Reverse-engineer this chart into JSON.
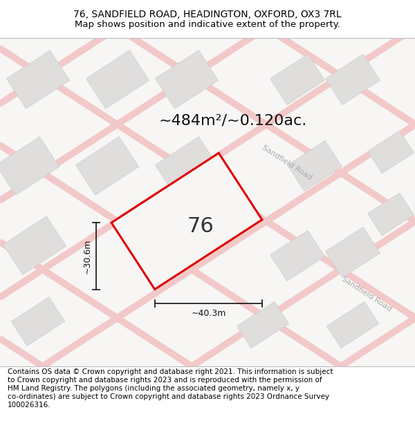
{
  "title_line1": "76, SANDFIELD ROAD, HEADINGTON, OXFORD, OX3 7RL",
  "title_line2": "Map shows position and indicative extent of the property.",
  "footer_lines": [
    "Contains OS data © Crown copyright and database right 2021. This information is subject",
    "to Crown copyright and database rights 2023 and is reproduced with the permission of",
    "HM Land Registry. The polygons (including the associated geometry, namely x, y",
    "co-ordinates) are subject to Crown copyright and database rights 2023 Ordnance Survey",
    "100026316."
  ],
  "map_bg": "#f7f6f4",
  "road_color": "#f2c8c8",
  "block_color": "#e0dedd",
  "block_edge": "#cccccc",
  "plot_edge": "#dd0000",
  "plot_fill": "#f7f6f4",
  "area_text": "~484m²/~0.120ac.",
  "plot_label": "76",
  "dim_h_label": "~30.6m",
  "dim_w_label": "~40.3m",
  "road_label": "Sandfield Road",
  "title_fontsize": 10,
  "subtitle_fontsize": 9.5,
  "footer_fontsize": 7.5,
  "area_fontsize": 16,
  "plot_label_fontsize": 22,
  "dim_fontsize": 9,
  "road_label_fontsize": 8
}
